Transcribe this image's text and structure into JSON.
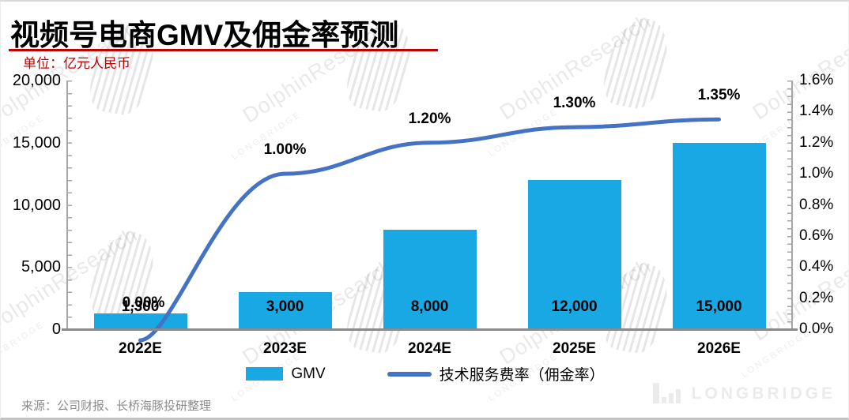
{
  "header": {
    "title": "视频号电商GMV及佣金率预测",
    "unit_label": "单位：亿元人民币"
  },
  "chart_data": {
    "type": "bar+line combo",
    "categories": [
      "2022E",
      "2023E",
      "2024E",
      "2025E",
      "2026E"
    ],
    "series": [
      {
        "name": "GMV",
        "type": "bar",
        "axis": "left",
        "values": [
          1300,
          3000,
          8000,
          12000,
          15000
        ],
        "labels": [
          "1,300",
          "3,000",
          "8,000",
          "12,000",
          "15,000"
        ],
        "color": "#18A9E4"
      },
      {
        "name": "技术服务费率（佣金率）",
        "type": "line",
        "axis": "right",
        "values": [
          0.0,
          1.0,
          1.2,
          1.3,
          1.35
        ],
        "labels": [
          "0.00%",
          "1.00%",
          "1.20%",
          "1.30%",
          "1.35%"
        ],
        "color": "#4472C4"
      }
    ],
    "left_axis": {
      "min": 0,
      "max": 20000,
      "ticks": [
        "20,000",
        "15,000",
        "10,000",
        "5,000",
        "0"
      ]
    },
    "right_axis": {
      "min": 0,
      "max": 1.6,
      "ticks": [
        "1.6%",
        "1.4%",
        "1.2%",
        "1.0%",
        "0.8%",
        "0.6%",
        "0.4%",
        "0.2%",
        "0.0%"
      ]
    },
    "grid": false,
    "legend_position": "bottom"
  },
  "source_note": "来源：公司财报、长桥海豚投研整理",
  "watermark": {
    "dolphin": "DolphinResearch",
    "longbridge": "LONGBRIDGE"
  },
  "brand_footer": {
    "logo_text": "LONGBRIDGE"
  },
  "colors": {
    "bar": "#18A9E4",
    "line": "#4472C4",
    "accent_red": "#C00000",
    "axis_gray": "#A6A6A6",
    "source_gray": "#8C8C8C"
  }
}
